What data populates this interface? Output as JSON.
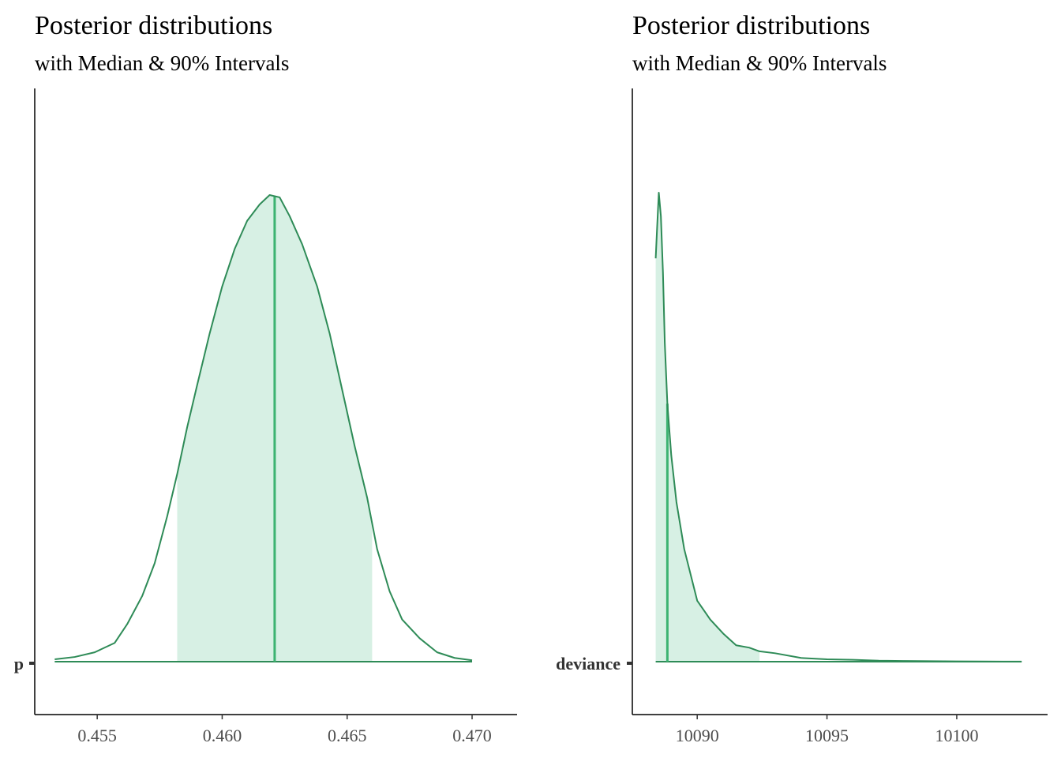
{
  "colors": {
    "density_line": "#2e8b57",
    "interval_fill": "#d7f0e4",
    "median_line": "#3cb371",
    "axis": "#000000",
    "tick_text": "#4d4d4d"
  },
  "chart_data": [
    {
      "type": "area",
      "title": "Posterior distributions",
      "subtitle": "with Median & 90% Intervals",
      "parameter": "p",
      "xlim": [
        0.4525,
        0.4718
      ],
      "x_ticks": [
        0.455,
        0.46,
        0.465,
        0.47
      ],
      "x_tick_labels": [
        "0.455",
        "0.460",
        "0.465",
        "0.470"
      ],
      "median": 0.4621,
      "interval": [
        0.4582,
        0.466
      ],
      "grid": false,
      "density": {
        "x": [
          0.4533,
          0.4541,
          0.4549,
          0.4557,
          0.4562,
          0.4568,
          0.4573,
          0.4578,
          0.4582,
          0.4586,
          0.459,
          0.4595,
          0.46,
          0.4605,
          0.461,
          0.4615,
          0.4619,
          0.4623,
          0.4627,
          0.4632,
          0.4638,
          0.4643,
          0.4648,
          0.4653,
          0.4658,
          0.4662,
          0.4667,
          0.4672,
          0.4679,
          0.4686,
          0.4693,
          0.47
        ],
        "y": [
          0.005,
          0.01,
          0.02,
          0.04,
          0.08,
          0.14,
          0.21,
          0.31,
          0.4,
          0.5,
          0.59,
          0.7,
          0.8,
          0.88,
          0.94,
          0.975,
          0.995,
          0.99,
          0.95,
          0.89,
          0.8,
          0.7,
          0.58,
          0.46,
          0.35,
          0.24,
          0.15,
          0.09,
          0.05,
          0.02,
          0.008,
          0.003
        ]
      }
    },
    {
      "type": "area",
      "title": "Posterior distributions",
      "subtitle": "with Median & 90% Intervals",
      "parameter": "deviance",
      "xlim": [
        10087.5,
        10103.5
      ],
      "x_ticks": [
        10090,
        10095,
        10100
      ],
      "x_tick_labels": [
        "10090",
        "10095",
        "10100"
      ],
      "median": 10088.85,
      "interval": [
        10088.4,
        10092.4
      ],
      "grid": false,
      "density": {
        "x": [
          10088.4,
          10088.45,
          10088.52,
          10088.6,
          10088.68,
          10088.75,
          10088.85,
          10089.0,
          10089.2,
          10089.5,
          10090.0,
          10090.5,
          10091.0,
          10091.5,
          10092.0,
          10092.4,
          10093.0,
          10094.0,
          10095.0,
          10096.0,
          10097.0,
          10098.0,
          10099.0,
          10100.0,
          10101.0,
          10102.5
        ],
        "y": [
          0.86,
          0.92,
          1.0,
          0.95,
          0.83,
          0.68,
          0.55,
          0.44,
          0.34,
          0.24,
          0.13,
          0.09,
          0.06,
          0.035,
          0.03,
          0.022,
          0.018,
          0.008,
          0.005,
          0.004,
          0.002,
          0.0015,
          0.001,
          0.0007,
          0.0004,
          0.0002
        ]
      }
    }
  ]
}
